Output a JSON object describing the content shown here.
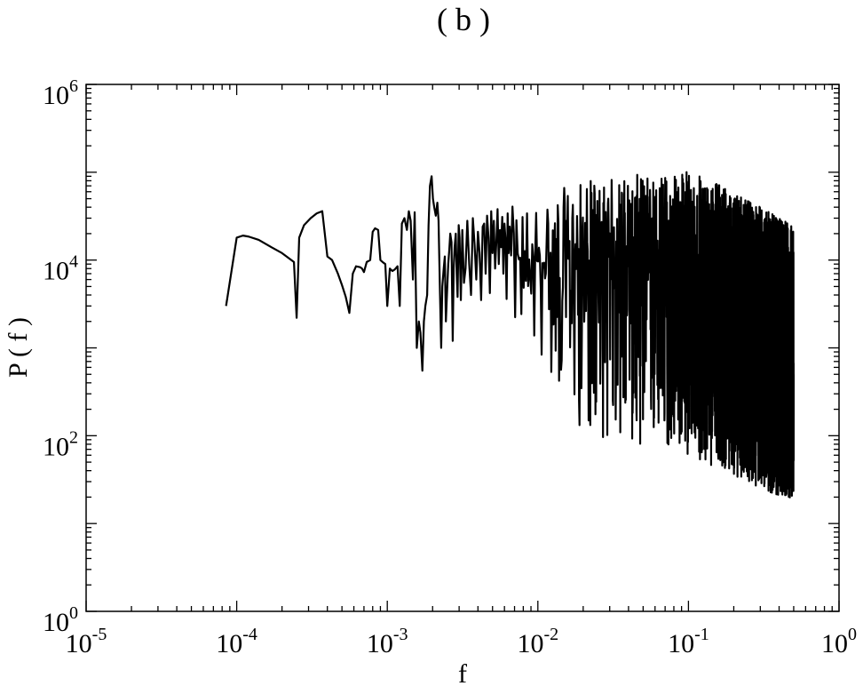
{
  "chart_data": {
    "type": "line",
    "title": "( b )",
    "xlabel": "f",
    "ylabel": "P ( f )",
    "x_scale": "log",
    "y_scale": "log",
    "xlim": [
      1e-05,
      1
    ],
    "ylim": [
      1,
      1000000
    ],
    "x_ticks": [
      {
        "base": "10",
        "exp": "-5"
      },
      {
        "base": "10",
        "exp": "-4"
      },
      {
        "base": "10",
        "exp": "-3"
      },
      {
        "base": "10",
        "exp": "-2"
      },
      {
        "base": "10",
        "exp": "-1"
      },
      {
        "base": "10",
        "exp": "0"
      }
    ],
    "y_ticks": [
      {
        "base": "10",
        "exp": "0"
      },
      {
        "base": "10",
        "exp": "2"
      },
      {
        "base": "10",
        "exp": "4"
      },
      {
        "base": "10",
        "exp": "6"
      }
    ],
    "grid": false,
    "line_color": "#000000",
    "series": [
      {
        "x": [
          8.5e-05,
          0.0001,
          0.00011,
          0.00012,
          0.00014,
          0.00017,
          0.0002,
          0.00024,
          0.00025,
          0.00026,
          0.00028,
          0.00031,
          0.00034,
          0.00037,
          0.0004,
          0.00043,
          0.00047,
          0.0005,
          0.00053,
          0.00056,
          0.00059,
          0.00062,
          0.00066,
          0.00068,
          0.0007,
          0.00073,
          0.00077,
          0.0008,
          0.00083,
          0.00087,
          0.0009,
          0.00093,
          0.00097,
          0.001,
          0.00104,
          0.00108,
          0.00112,
          0.00117,
          0.00121,
          0.00125,
          0.0013,
          0.00135,
          0.00139,
          0.00143,
          0.00148,
          0.00152,
          0.00157,
          0.00162,
          0.00166,
          0.00171,
          0.00175,
          0.00179,
          0.00184,
          0.00188,
          0.00192,
          0.00197,
          0.00201,
          0.00205,
          0.0021,
          0.00215,
          0.00219,
          0.00224,
          0.00228,
          0.00232,
          0.00237,
          0.00241,
          0.00245,
          0.00249,
          0.00254,
          0.00258,
          0.00262,
          0.00267,
          0.00272,
          0.00276,
          0.0028,
          0.00285,
          0.00289,
          0.00293,
          0.00298,
          0.00302,
          0.00308,
          0.00315,
          0.00323,
          0.00331,
          0.0034,
          0.0035,
          0.0036,
          0.0037,
          0.0038,
          0.0039,
          0.004,
          0.0041,
          0.0042,
          0.0043,
          0.0044,
          0.0045,
          0.0046,
          0.0047,
          0.0048,
          0.0049,
          0.005,
          0.0051,
          0.0052,
          0.0053,
          0.0054,
          0.0055,
          0.0056,
          0.0057,
          0.0058,
          0.0059,
          0.006,
          0.0061,
          0.0062,
          0.0063,
          0.0064,
          0.0065
        ],
        "y": [
          3000,
          18000,
          19000,
          18500,
          17000,
          14000,
          12000,
          9500,
          2200,
          18000,
          25000,
          30000,
          34000,
          36000,
          11000,
          10000,
          7000,
          5200,
          3800,
          2500,
          7000,
          8500,
          8300,
          8000,
          7300,
          9500,
          10000,
          21000,
          23000,
          22000,
          10000,
          9500,
          9000,
          3000,
          8000,
          7500,
          7800,
          8500,
          3000,
          26000,
          30000,
          22000,
          36000,
          28000,
          6000,
          35000,
          1000,
          2000,
          1500,
          550,
          2000,
          3000,
          4000,
          25000,
          70000,
          90000,
          50000,
          40000,
          32000,
          45000,
          28000,
          4000,
          1000,
          5000,
          8000,
          11000,
          2000,
          4000,
          9000,
          13000,
          20000,
          16000,
          1200,
          8000,
          14000,
          20000,
          7000,
          3800,
          25000,
          18000,
          3500,
          22000,
          5500,
          8000,
          28000,
          9000,
          4000,
          30000,
          15000,
          6000,
          21000,
          12000,
          3500,
          24000,
          26000,
          7000,
          32000,
          18000,
          4200,
          36000,
          12000,
          28000,
          8000,
          16000,
          38000,
          9000,
          22000,
          14000,
          31000,
          7000,
          26000,
          17000,
          3600,
          34000,
          12000,
          24000
        ],
        "noise": {
          "x_start": 0.0065,
          "x_end": 0.5,
          "count": 3500,
          "trend": [
            [
              0.0065,
              9000
            ],
            [
              0.03,
              10000
            ],
            [
              0.1,
              5500
            ],
            [
              0.3,
              2200
            ],
            [
              0.5,
              700
            ]
          ],
          "spike_max": [
            [
              0.0065,
              40000
            ],
            [
              0.02,
              80000
            ],
            [
              0.1,
              110000
            ],
            [
              0.3,
              40000
            ],
            [
              0.5,
              25000
            ]
          ],
          "dip_min": [
            [
              0.0065,
              2000
            ],
            [
              0.01,
              800
            ],
            [
              0.02,
              100
            ],
            [
              0.1,
              60
            ],
            [
              0.3,
              25
            ],
            [
              0.5,
              18
            ]
          ]
        }
      }
    ]
  }
}
